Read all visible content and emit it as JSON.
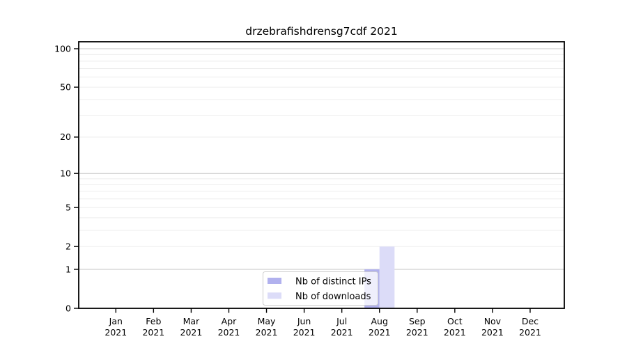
{
  "chart_data": {
    "type": "bar",
    "title": "drzebrafishdrensg7cdf 2021",
    "months": [
      "Jan",
      "Feb",
      "Mar",
      "Apr",
      "May",
      "Jun",
      "Jul",
      "Aug",
      "Sep",
      "Oct",
      "Nov",
      "Dec"
    ],
    "year_label": "2021",
    "categories": [
      "Jan 2021",
      "Feb 2021",
      "Mar 2021",
      "Apr 2021",
      "May 2021",
      "Jun 2021",
      "Jul 2021",
      "Aug 2021",
      "Sep 2021",
      "Oct 2021",
      "Nov 2021",
      "Dec 2021"
    ],
    "series": [
      {
        "name": "Nb of distinct IPs",
        "color": "#b1b1ee",
        "values": [
          0,
          0,
          0,
          0,
          0,
          0,
          0,
          1,
          0,
          0,
          0,
          0
        ]
      },
      {
        "name": "Nb of downloads",
        "color": "#dcdcf8",
        "values": [
          0,
          0,
          0,
          0,
          0,
          0,
          0,
          2,
          0,
          0,
          0,
          0
        ]
      }
    ],
    "yscale": "log1p",
    "ylim": [
      0,
      113
    ],
    "y_major_ticks": [
      0,
      1,
      2,
      5,
      10,
      20,
      50,
      100
    ],
    "y_decade_gridlines": [
      1,
      10,
      100
    ],
    "y_light_gridlines": [
      2,
      3,
      4,
      5,
      6,
      7,
      8,
      9,
      20,
      30,
      40,
      50,
      60,
      70,
      80,
      90
    ],
    "grid": true,
    "legend": {
      "position": "lower-center-inside",
      "entries": [
        "Nb of distinct IPs",
        "Nb of downloads"
      ]
    }
  },
  "style": {
    "background": "#ffffff",
    "spine_color": "#000000",
    "tick_label_color": "#000000",
    "grid_decade_color": "#c6c6c6",
    "grid_light_color": "#ededed",
    "legend_border_color": "#cccccc",
    "legend_bg_alpha": 0.8
  }
}
